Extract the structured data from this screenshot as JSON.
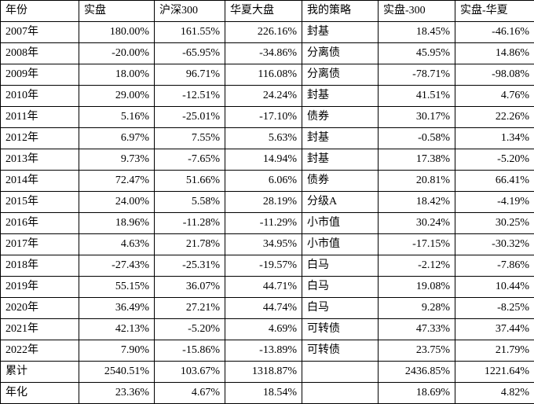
{
  "table": {
    "columns": [
      {
        "label": "年份",
        "align": "left",
        "header_align": "left"
      },
      {
        "label": "实盘",
        "align": "right",
        "header_align": "left"
      },
      {
        "label": "沪深300",
        "align": "right",
        "header_align": "left"
      },
      {
        "label": "华夏大盘",
        "align": "right",
        "header_align": "left"
      },
      {
        "label": "我的策略",
        "align": "left",
        "header_align": "left"
      },
      {
        "label": "实盘-300",
        "align": "right",
        "header_align": "left"
      },
      {
        "label": "实盘-华夏",
        "align": "right",
        "header_align": "left"
      }
    ],
    "rows": [
      [
        "2007年",
        "180.00%",
        "161.55%",
        "226.16%",
        "封基",
        "18.45%",
        "-46.16%"
      ],
      [
        "2008年",
        "-20.00%",
        "-65.95%",
        "-34.86%",
        "分离债",
        "45.95%",
        "14.86%"
      ],
      [
        "2009年",
        "18.00%",
        "96.71%",
        "116.08%",
        "分离债",
        "-78.71%",
        "-98.08%"
      ],
      [
        "2010年",
        "29.00%",
        "-12.51%",
        "24.24%",
        "封基",
        "41.51%",
        "4.76%"
      ],
      [
        "2011年",
        "5.16%",
        "-25.01%",
        "-17.10%",
        "债券",
        "30.17%",
        "22.26%"
      ],
      [
        "2012年",
        "6.97%",
        "7.55%",
        "5.63%",
        "封基",
        "-0.58%",
        "1.34%"
      ],
      [
        "2013年",
        "9.73%",
        "-7.65%",
        "14.94%",
        "封基",
        "17.38%",
        "-5.20%"
      ],
      [
        "2014年",
        "72.47%",
        "51.66%",
        "6.06%",
        "债券",
        "20.81%",
        "66.41%"
      ],
      [
        "2015年",
        "24.00%",
        "5.58%",
        "28.19%",
        "分级A",
        "18.42%",
        "-4.19%"
      ],
      [
        "2016年",
        "18.96%",
        "-11.28%",
        "-11.29%",
        "小市值",
        "30.24%",
        "30.25%"
      ],
      [
        "2017年",
        "4.63%",
        "21.78%",
        "34.95%",
        "小市值",
        "-17.15%",
        "-30.32%"
      ],
      [
        "2018年",
        "-27.43%",
        "-25.31%",
        "-19.57%",
        "白马",
        "-2.12%",
        "-7.86%"
      ],
      [
        "2019年",
        "55.15%",
        "36.07%",
        "44.71%",
        "白马",
        "19.08%",
        "10.44%"
      ],
      [
        "2020年",
        "36.49%",
        "27.21%",
        "44.74%",
        "白马",
        "9.28%",
        "-8.25%"
      ],
      [
        "2021年",
        "42.13%",
        "-5.20%",
        "4.69%",
        "可转债",
        "47.33%",
        "37.44%"
      ],
      [
        "2022年",
        "7.90%",
        "-15.86%",
        "-13.89%",
        "可转债",
        "23.75%",
        "21.79%"
      ],
      [
        "累计",
        "2540.51%",
        "103.67%",
        "1318.87%",
        "",
        "2436.85%",
        "1221.64%"
      ],
      [
        "年化",
        "23.36%",
        "4.67%",
        "18.54%",
        "",
        "18.69%",
        "4.82%"
      ]
    ]
  },
  "colors": {
    "grid_border": "#000000",
    "text": "#000000",
    "background": "#ffffff"
  }
}
